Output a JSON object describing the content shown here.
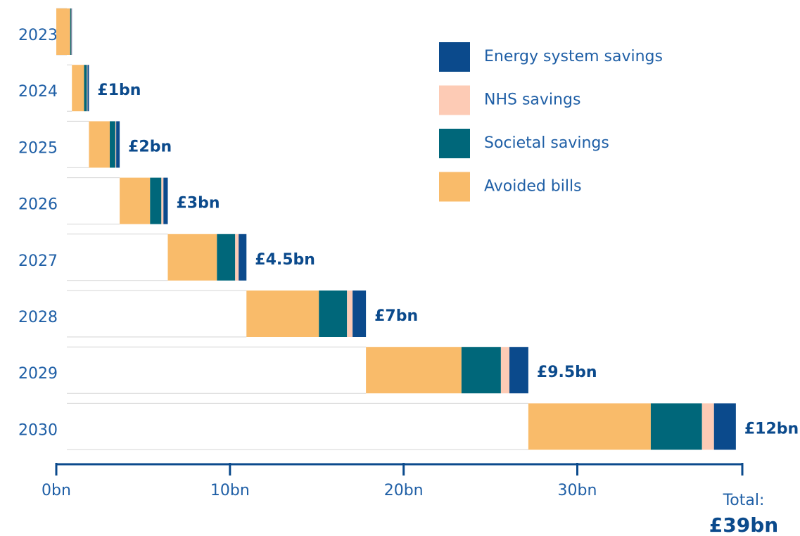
{
  "chart_data": {
    "type": "waterfall-stacked-bar",
    "categories": [
      "2023",
      "2024",
      "2025",
      "2026",
      "2027",
      "2028",
      "2029",
      "2030"
    ],
    "series": [
      {
        "name": "Avoided bills",
        "color": "#f9bb6a",
        "values": [
          0.8,
          0.7,
          1.2,
          1.75,
          2.83,
          4.17,
          5.5,
          7.05
        ]
      },
      {
        "name": "Societal savings",
        "color": "#00677a",
        "values": [
          0.05,
          0.16,
          0.32,
          0.65,
          1.05,
          1.62,
          2.27,
          2.95
        ]
      },
      {
        "name": "NHS savings",
        "color": "#fdcbb5",
        "values": [
          0.02,
          0.04,
          0.05,
          0.12,
          0.2,
          0.32,
          0.49,
          0.69
        ]
      },
      {
        "name": "Energy system savings",
        "color": "#0b4a8c",
        "values": [
          0.03,
          0.08,
          0.2,
          0.25,
          0.45,
          0.77,
          1.09,
          1.26
        ]
      }
    ],
    "total_labels": [
      null,
      "£1bn",
      "£2bn",
      "£3bn",
      "£4.5bn",
      "£7bn",
      "£9.5bn",
      "£12bn"
    ],
    "xlim": [
      0,
      39.5
    ],
    "xticks": [
      {
        "value": 0,
        "label": "0bn"
      },
      {
        "value": 10,
        "label": "10bn"
      },
      {
        "value": 20,
        "label": "20bn"
      },
      {
        "value": 30,
        "label": "30bn"
      }
    ],
    "annotation": {
      "caption": "Total:",
      "value": "£39bn"
    }
  }
}
